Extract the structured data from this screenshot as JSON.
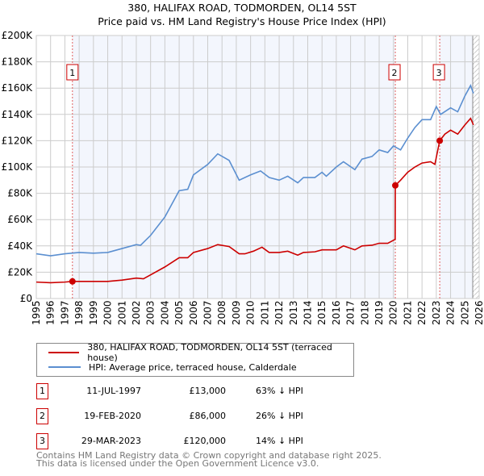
{
  "chart_data": {
    "type": "line",
    "title": "380, HALIFAX ROAD, TODMORDEN, OL14 5ST",
    "subtitle": "Price paid vs. HM Land Registry's House Price Index (HPI)",
    "xlim": [
      1995,
      2026
    ],
    "ylim": [
      0,
      200000
    ],
    "x_ticks": [
      "1995",
      "1996",
      "1997",
      "1998",
      "1999",
      "2000",
      "2001",
      "2002",
      "2003",
      "2004",
      "2005",
      "2006",
      "2007",
      "2008",
      "2009",
      "2010",
      "2011",
      "2012",
      "2013",
      "2014",
      "2015",
      "2016",
      "2017",
      "2018",
      "2019",
      "2020",
      "2021",
      "2022",
      "2023",
      "2024",
      "2025",
      "2026"
    ],
    "y_ticks": [
      {
        "v": 0,
        "label": "£0"
      },
      {
        "v": 20000,
        "label": "£20K"
      },
      {
        "v": 40000,
        "label": "£40K"
      },
      {
        "v": 60000,
        "label": "£60K"
      },
      {
        "v": 80000,
        "label": "£80K"
      },
      {
        "v": 100000,
        "label": "£100K"
      },
      {
        "v": 120000,
        "label": "£120K"
      },
      {
        "v": 140000,
        "label": "£140K"
      },
      {
        "v": 160000,
        "label": "£160K"
      },
      {
        "v": 180000,
        "label": "£180K"
      },
      {
        "v": 200000,
        "label": "£200K"
      }
    ],
    "grid": true,
    "series": [
      {
        "name": "380, HALIFAX ROAD, TODMORDEN, OL14 5ST (terraced house)",
        "color": "#cc0000",
        "x": [
          1995,
          1996,
          1997,
          1997.53,
          1999,
          2000,
          2001,
          2002,
          2002.5,
          2003,
          2004,
          2005,
          2005.6,
          2006,
          2007,
          2007.7,
          2008.5,
          2009.2,
          2009.6,
          2010.2,
          2010.8,
          2011.3,
          2012,
          2012.6,
          2013.3,
          2013.7,
          2014.5,
          2015,
          2016,
          2016.5,
          2017.3,
          2017.8,
          2018.5,
          2019,
          2019.6,
          2020.12,
          2020.13,
          2020.5,
          2021,
          2021.5,
          2022,
          2022.6,
          2022.9,
          2023.24,
          2023.6,
          2024,
          2024.5,
          2025,
          2025.4,
          2025.6
        ],
        "y": [
          12500,
          12000,
          12500,
          13000,
          13000,
          13000,
          14000,
          15500,
          15000,
          18000,
          24000,
          31000,
          31000,
          35000,
          38000,
          41000,
          39500,
          34000,
          34000,
          36000,
          39000,
          35000,
          35000,
          36000,
          33000,
          35000,
          35500,
          37000,
          37000,
          40000,
          37000,
          40000,
          40500,
          42000,
          42000,
          45000,
          86000,
          90000,
          96000,
          100000,
          103000,
          104000,
          102000,
          120000,
          125000,
          128000,
          125000,
          132000,
          137000,
          132000
        ]
      },
      {
        "name": "HPI: Average price, terraced house, Calderdale",
        "color": "#5b8fd0",
        "x": [
          1995,
          1996,
          1997,
          1998,
          1999,
          2000,
          2001,
          2002,
          2002.3,
          2003,
          2004,
          2005,
          2005.6,
          2006,
          2007,
          2007.7,
          2008.5,
          2009.2,
          2010,
          2010.7,
          2011.3,
          2012,
          2012.6,
          2013.3,
          2013.7,
          2014.5,
          2015,
          2015.3,
          2016,
          2016.5,
          2017.3,
          2017.8,
          2018.5,
          2019,
          2019.6,
          2020,
          2020.5,
          2021,
          2021.5,
          2022,
          2022.6,
          2023,
          2023.3,
          2024,
          2024.5,
          2025,
          2025.4,
          2025.6
        ],
        "y": [
          34000,
          32500,
          34000,
          35000,
          34500,
          35000,
          38000,
          41000,
          40500,
          48000,
          62000,
          82000,
          83000,
          94000,
          102000,
          110000,
          105000,
          90000,
          94000,
          97000,
          92000,
          90000,
          93000,
          88000,
          92000,
          92000,
          96000,
          93000,
          100000,
          104000,
          98000,
          106000,
          108000,
          113000,
          111000,
          116000,
          113000,
          122000,
          130000,
          136000,
          136000,
          146000,
          140000,
          145000,
          142000,
          154000,
          162000,
          156000
        ]
      }
    ],
    "sales": [
      {
        "n": "1",
        "x": 1997.53,
        "y": 13000,
        "date": "11-JUL-1997",
        "price": "£13,000",
        "hpi": "63% ↓ HPI"
      },
      {
        "n": "2",
        "x": 2020.13,
        "y": 86000,
        "date": "19-FEB-2020",
        "price": "£86,000",
        "hpi": "26% ↓ HPI"
      },
      {
        "n": "3",
        "x": 2023.24,
        "y": 120000,
        "date": "29-MAR-2023",
        "price": "£120,000",
        "hpi": "14% ↓ HPI"
      }
    ]
  },
  "footer": {
    "line1": "Contains HM Land Registry data © Crown copyright and database right 2025.",
    "line2": "This data is licensed under the Open Government Licence v3.0."
  }
}
